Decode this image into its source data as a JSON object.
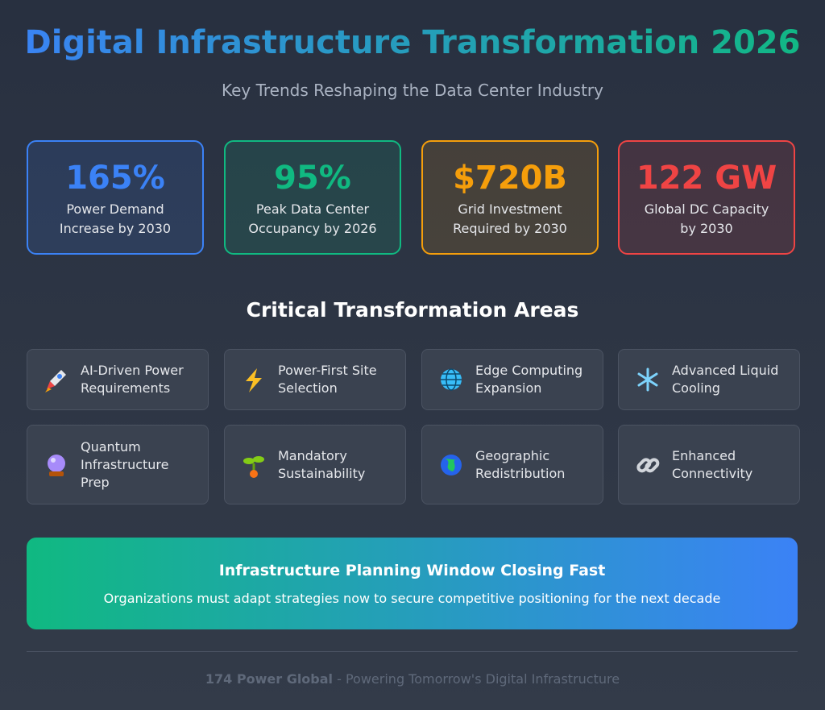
{
  "header": {
    "title": "Digital Infrastructure Transformation 2026",
    "subtitle": "Key Trends Reshaping the Data Center Industry"
  },
  "stats": [
    {
      "value": "165%",
      "label": [
        "Power Demand",
        "Increase by 2030"
      ],
      "color": "#3b82f6"
    },
    {
      "value": "95%",
      "label": [
        "Peak Data Center",
        "Occupancy by 2026"
      ],
      "color": "#10b981"
    },
    {
      "value": "$720B",
      "label": [
        "Grid Investment",
        "Required by 2030"
      ],
      "color": "#f59e0b"
    },
    {
      "value": "122 GW",
      "label": [
        "Global DC Capacity",
        "by 2030"
      ],
      "color": "#ef4444"
    }
  ],
  "section": {
    "title": "Critical Transformation Areas",
    "areas": [
      [
        "AI-Driven Power",
        "Requirements"
      ],
      [
        "Power-First Site",
        "Selection"
      ],
      [
        "Edge Computing",
        "Expansion"
      ],
      [
        "Advanced Liquid",
        "Cooling"
      ],
      [
        "Quantum",
        "Infrastructure",
        "Prep"
      ],
      [
        "Mandatory",
        "Sustainability"
      ],
      [
        "Geographic",
        "Redistribution"
      ],
      [
        "Enhanced",
        "Connectivity"
      ]
    ]
  },
  "banner": {
    "title": "Infrastructure Planning Window Closing Fast",
    "text": "Organizations must adapt strategies now to secure competitive positioning for the next decade"
  },
  "footer": {
    "brand": "174 Power Global",
    "tagline": " - Powering Tomorrow's Digital Infrastructure"
  }
}
